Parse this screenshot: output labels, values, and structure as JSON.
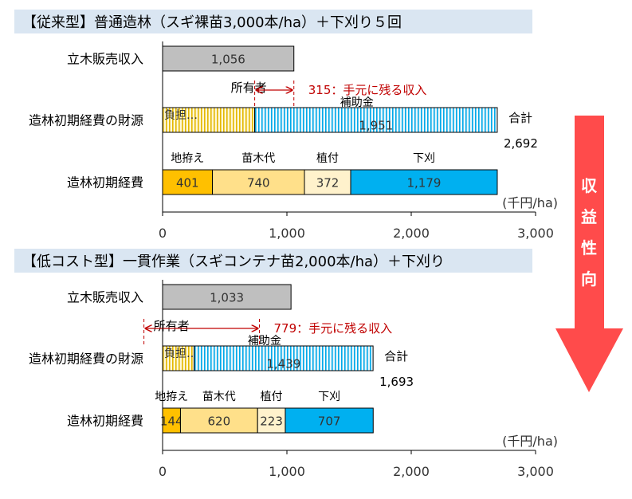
{
  "colors": {
    "header_bg": "#dae6f2",
    "sales": "#bfbfbf",
    "owner": "#fff2b3",
    "subsidy": "#eaf6fb",
    "subsidy_stripe": "#00a8e8",
    "land": "#ffc000",
    "seedling": "#ffe08a",
    "planting": "#fff2cc",
    "weeding": "#00b0f0",
    "annotation": "#c00000",
    "arrow": "#ff4b4b"
  },
  "arrow_label": [
    "収",
    "益",
    "性",
    "向"
  ],
  "x_unit": "(千円/ha)",
  "x_ticks": [
    "0",
    "1,000",
    "2,000",
    "3,000"
  ],
  "chart_data": [
    {
      "type": "bar",
      "title": "【従来型】普通造林（スギ裸苗3,000本/ha）＋下刈り５回",
      "xlim": [
        0,
        3000
      ],
      "x_ticks": [
        0,
        1000,
        2000,
        3000
      ],
      "x_unit": "(千円/ha)",
      "categories": [
        "立木販売収入",
        "造林初期経費の財源",
        "造林初期経費"
      ],
      "sales": {
        "label": "立木販売収入",
        "value": 1056,
        "value_label": "1,056"
      },
      "funding": {
        "label": "造林初期経費の財源",
        "segments": [
          {
            "name": "所有者負担",
            "value": 741,
            "value_label": "負担…",
            "type": "owner"
          },
          {
            "name": "補助金",
            "value": 1951,
            "value_label": "1,951",
            "type": "subsidy"
          }
        ],
        "owner_label": "所有者",
        "subsidy_label": "補助金",
        "total_prefix": "合計",
        "total_label": "2,692",
        "annotation": "315：手元に残る収入",
        "annotation_range": [
          741,
          1056
        ]
      },
      "costs": {
        "label": "造林初期経費",
        "segments": [
          {
            "name": "地拵え",
            "value": 401,
            "value_label": "401",
            "type": "land"
          },
          {
            "name": "苗木代",
            "value": 740,
            "value_label": "740",
            "type": "seedling"
          },
          {
            "name": "植付",
            "value": 372,
            "value_label": "372",
            "type": "planting"
          },
          {
            "name": "下刈",
            "value": 1179,
            "value_label": "1,179",
            "type": "weeding"
          }
        ]
      }
    },
    {
      "type": "bar",
      "title": "【低コスト型】一貫作業（スギコンテナ苗2,000本/ha）＋下刈り",
      "xlim": [
        0,
        3000
      ],
      "x_ticks": [
        0,
        1000,
        2000,
        3000
      ],
      "x_unit": "(千円/ha)",
      "categories": [
        "立木販売収入",
        "造林初期経費の財源",
        "造林初期経費"
      ],
      "sales": {
        "label": "立木販売収入",
        "value": 1033,
        "value_label": "1,033"
      },
      "funding": {
        "label": "造林初期経費の財源",
        "segments": [
          {
            "name": "所有者負担",
            "value": 254,
            "value_label": "負担…",
            "type": "owner"
          },
          {
            "name": "補助金",
            "value": 1439,
            "value_label": "1,439",
            "type": "subsidy"
          }
        ],
        "owner_label": "所有者",
        "subsidy_label": "補助金",
        "total_prefix": "合計",
        "total_label": "1,693",
        "annotation": "779：手元に残る収入",
        "annotation_range": [
          -150,
          779
        ]
      },
      "costs": {
        "label": "造林初期経費",
        "segments": [
          {
            "name": "地拵え",
            "value": 144,
            "value_label": "144",
            "type": "land"
          },
          {
            "name": "苗木代",
            "value": 620,
            "value_label": "620",
            "type": "seedling"
          },
          {
            "name": "植付",
            "value": 223,
            "value_label": "223",
            "type": "planting"
          },
          {
            "name": "下刈",
            "value": 707,
            "value_label": "707",
            "type": "weeding"
          }
        ]
      }
    }
  ]
}
